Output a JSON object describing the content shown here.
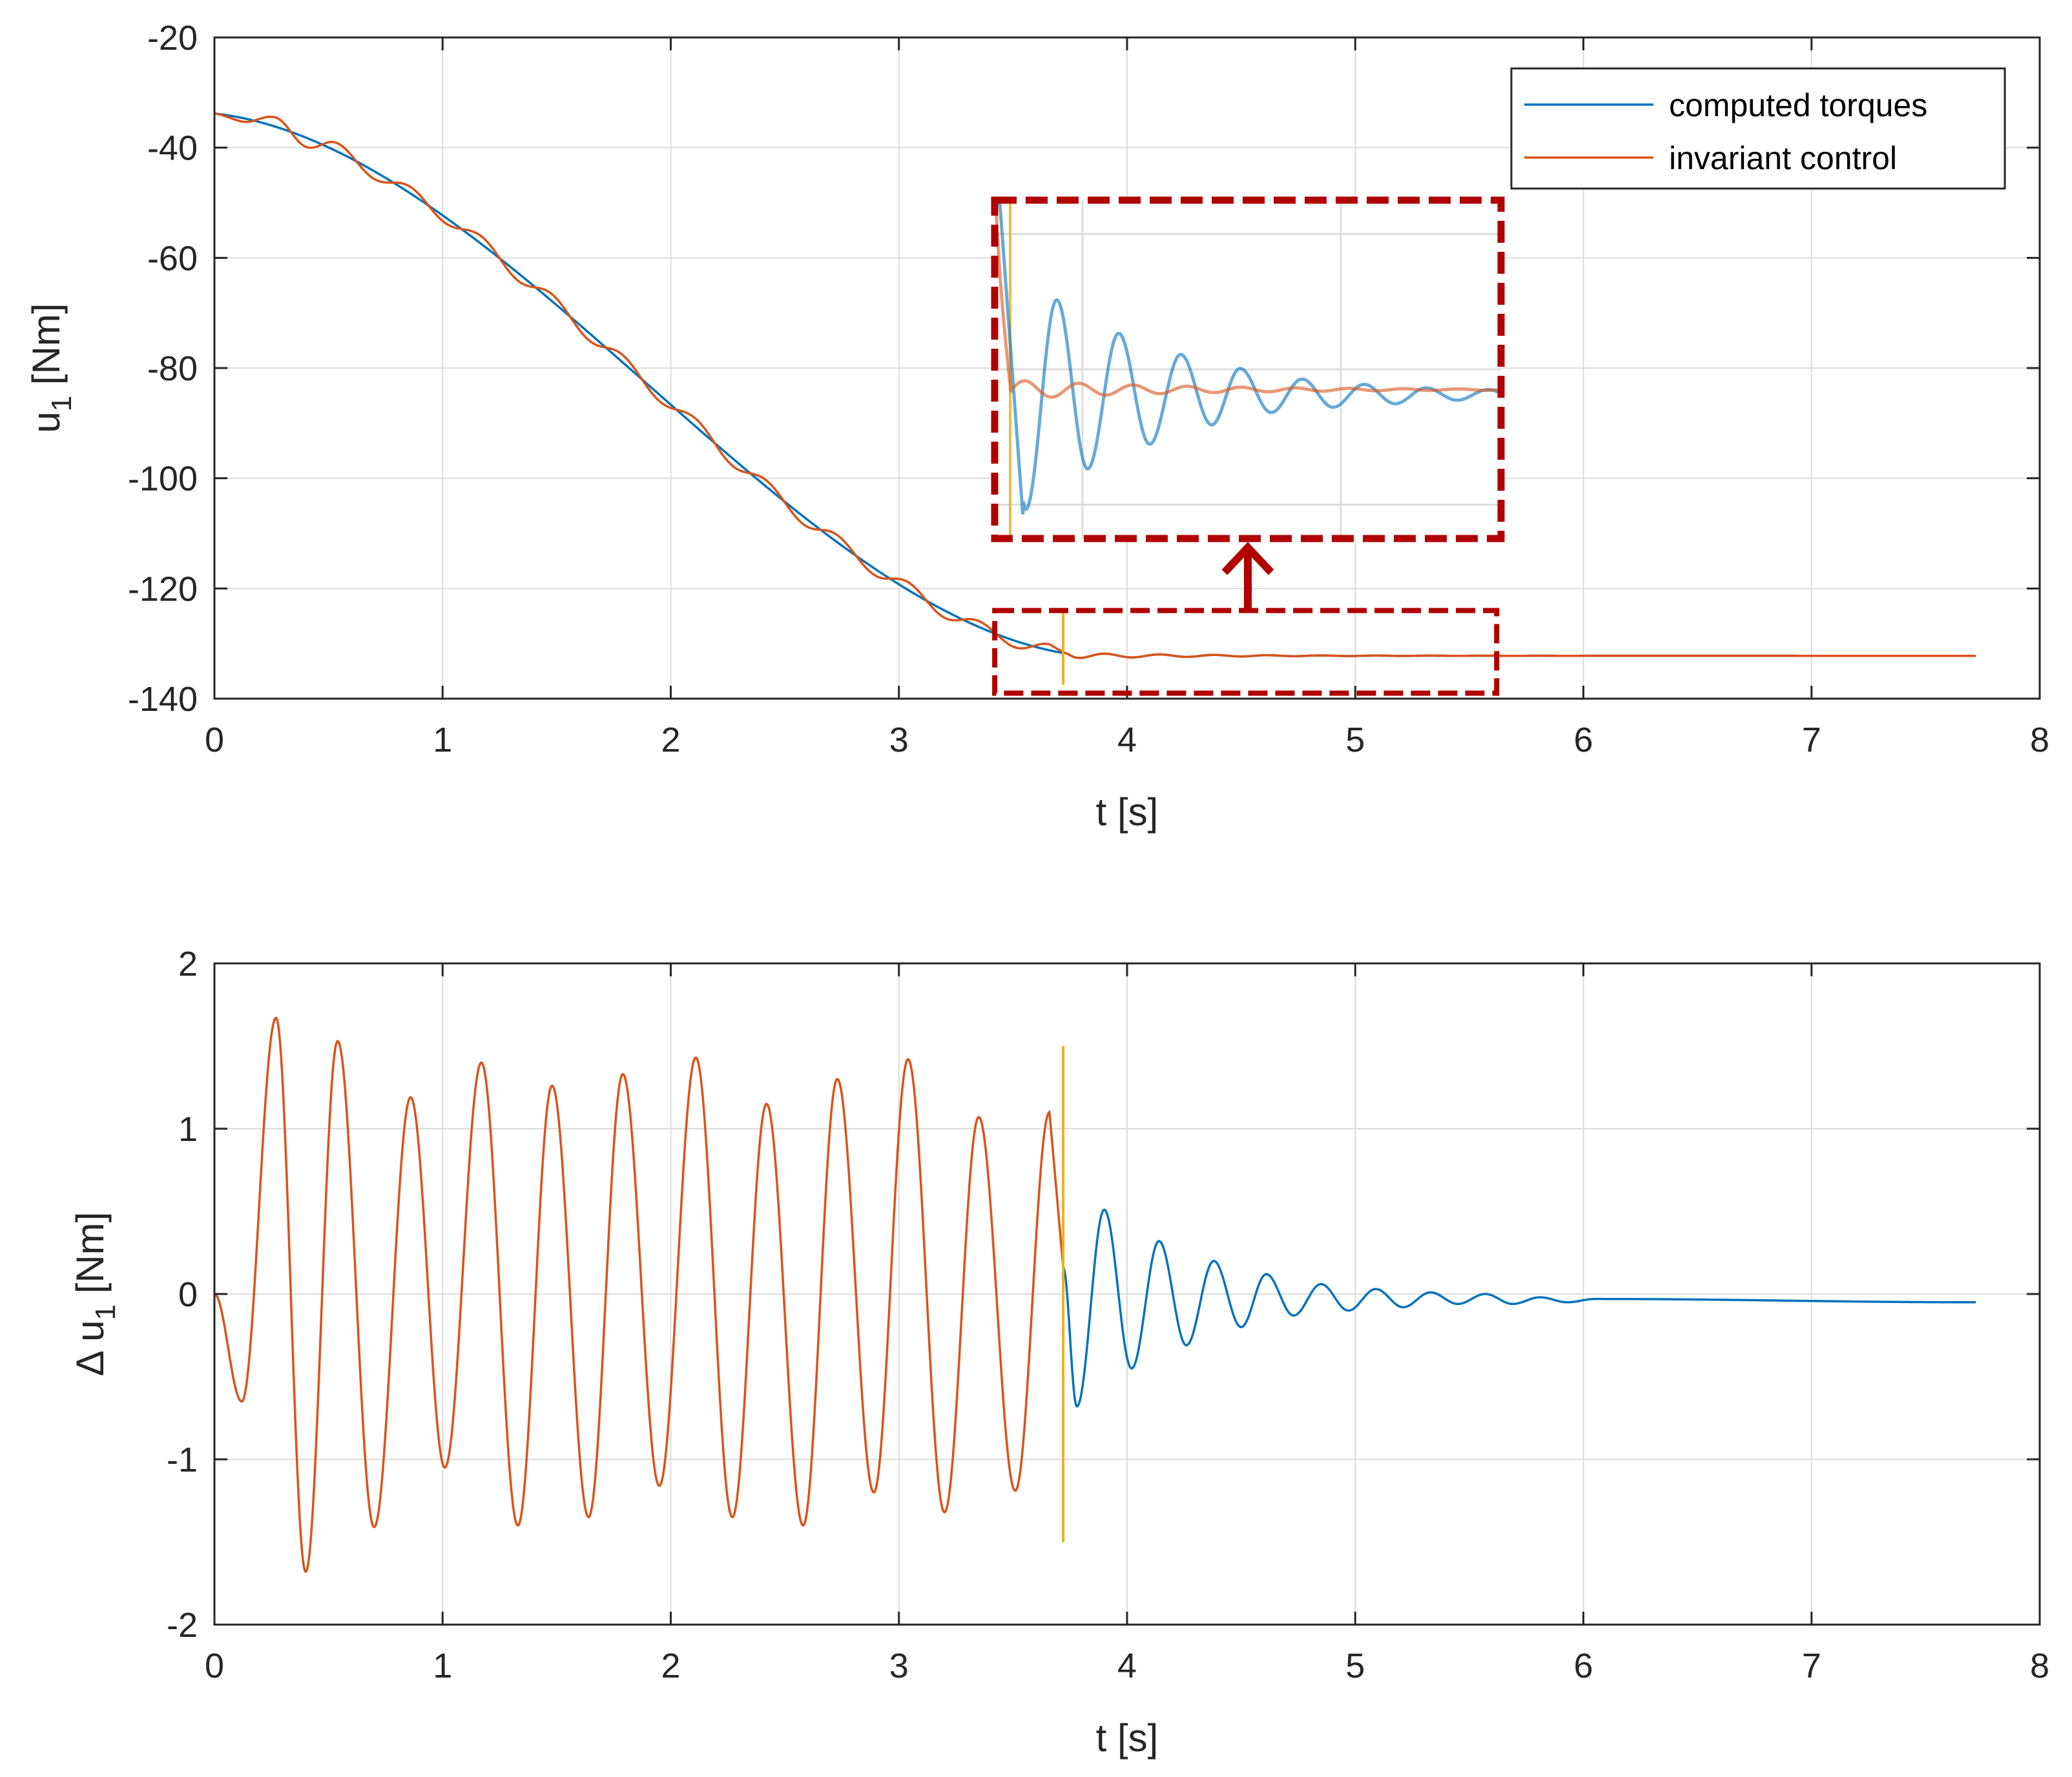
{
  "colors": {
    "computed": "#0072BD",
    "invariant": "#D95319",
    "switch_line": "#EDB120",
    "annotation": "#B00000",
    "grid": "#dcdcdc",
    "axis": "#262626"
  },
  "chart_data": [
    {
      "type": "line",
      "id": "top",
      "xlabel": "t [s]",
      "ylabel": "u",
      "ylabel_sub": "1",
      "ylabel_suffix": " [Nm]",
      "xlim": [
        0,
        8
      ],
      "ylim": [
        -140,
        -20
      ],
      "xticks": [
        "0",
        "1",
        "2",
        "3",
        "4",
        "5",
        "6",
        "7",
        "8"
      ],
      "yticks": [
        "-20",
        "-40",
        "-60",
        "-80",
        "-100",
        "-120",
        "-140"
      ],
      "grid": true,
      "legend": {
        "position": "top-right",
        "entries": [
          "computed torques",
          "invariant control"
        ]
      },
      "switch_time": 3.72,
      "series": [
        {
          "name": "computed torques",
          "color_key": "computed",
          "model": "smooth torque profile decreasing from about -34 Nm at t=0 to -132 Nm around t=3.8 s, then a small decaying ripple settling near -132 Nm until t=7.72 s"
        },
        {
          "name": "invariant control",
          "color_key": "invariant",
          "model": "same profile with superimposed ~1.5 Nm oscillation until t=3.72 s, then coincides with computed torques; ends at t=7.72 s"
        }
      ],
      "zoom_region": {
        "x": [
          3.42,
          5.62
        ],
        "y": [
          -139,
          -124
        ]
      },
      "inset_zoom_x": [
        3.66,
        5.62
      ],
      "inset_zoom_y": [
        -134.5,
        -129.5
      ]
    },
    {
      "type": "line",
      "id": "bottom",
      "xlabel": "t [s]",
      "ylabel": "Δ u",
      "ylabel_sub": "1",
      "ylabel_suffix": " [Nm]",
      "xlim": [
        0,
        8
      ],
      "ylim": [
        -2,
        2
      ],
      "xticks": [
        "0",
        "1",
        "2",
        "3",
        "4",
        "5",
        "6",
        "7",
        "8"
      ],
      "yticks": [
        "2",
        "1",
        "0",
        "-1",
        "-2"
      ],
      "grid": true,
      "switch_time": 3.72,
      "switch_line_range": [
        -1.5,
        1.5
      ],
      "peaks_before_switch": [
        [
          0.12,
          -0.65
        ],
        [
          0.27,
          1.67
        ],
        [
          0.4,
          -1.68
        ],
        [
          0.54,
          1.53
        ],
        [
          0.7,
          -1.41
        ],
        [
          0.86,
          1.19
        ],
        [
          1.01,
          -1.05
        ],
        [
          1.17,
          1.4
        ],
        [
          1.33,
          -1.4
        ],
        [
          1.48,
          1.26
        ],
        [
          1.64,
          -1.35
        ],
        [
          1.79,
          1.33
        ],
        [
          1.95,
          -1.16
        ],
        [
          2.11,
          1.43
        ],
        [
          2.27,
          -1.35
        ],
        [
          2.42,
          1.15
        ],
        [
          2.58,
          -1.4
        ],
        [
          2.73,
          1.3
        ],
        [
          2.89,
          -1.2
        ],
        [
          3.04,
          1.42
        ],
        [
          3.2,
          -1.32
        ],
        [
          3.35,
          1.07
        ],
        [
          3.51,
          -1.19
        ],
        [
          3.66,
          1.1
        ]
      ],
      "peaks_after_switch": [
        [
          3.78,
          -0.68
        ],
        [
          3.9,
          0.51
        ],
        [
          4.02,
          -0.45
        ],
        [
          4.14,
          0.32
        ],
        [
          4.26,
          -0.31
        ],
        [
          4.38,
          0.2
        ],
        [
          4.5,
          -0.2
        ],
        [
          4.61,
          0.12
        ],
        [
          4.73,
          -0.13
        ],
        [
          4.85,
          0.06
        ],
        [
          4.97,
          -0.1
        ],
        [
          5.09,
          0.03
        ],
        [
          5.21,
          -0.08
        ],
        [
          5.33,
          0.01
        ],
        [
          5.45,
          -0.06
        ],
        [
          5.57,
          0.0
        ],
        [
          5.69,
          -0.06
        ],
        [
          5.81,
          -0.02
        ],
        [
          5.93,
          -0.05
        ],
        [
          6.05,
          -0.03
        ],
        [
          7.72,
          -0.05
        ]
      ],
      "series": [
        {
          "name": "invariant control",
          "color_key": "invariant",
          "t_range": [
            0,
            3.72
          ]
        },
        {
          "name": "computed torques",
          "color_key": "computed",
          "t_range": [
            3.72,
            7.72
          ]
        }
      ]
    }
  ]
}
